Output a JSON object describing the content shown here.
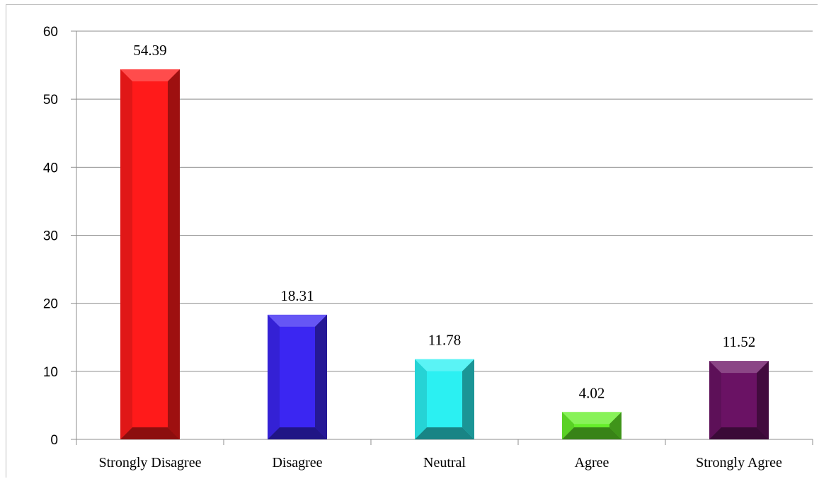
{
  "chart_data": {
    "type": "bar",
    "categories": [
      "Strongly Disagree",
      "Disagree",
      "Neutral",
      "Agree",
      "Strongly Agree"
    ],
    "values": [
      54.39,
      18.31,
      11.78,
      4.02,
      11.52
    ],
    "data_labels": [
      "54.39",
      "18.31",
      "11.78",
      "4.02",
      "11.52"
    ],
    "ylim": [
      0,
      60
    ],
    "yticks": [
      0,
      10,
      20,
      30,
      40,
      50,
      60
    ],
    "title": "",
    "xlabel": "",
    "ylabel": "",
    "grid": true,
    "bar_style": "beveled",
    "colors": [
      "#ff1a1a",
      "#3b26f2",
      "#2bf0f2",
      "#66ee2a",
      "#6a1264"
    ]
  }
}
